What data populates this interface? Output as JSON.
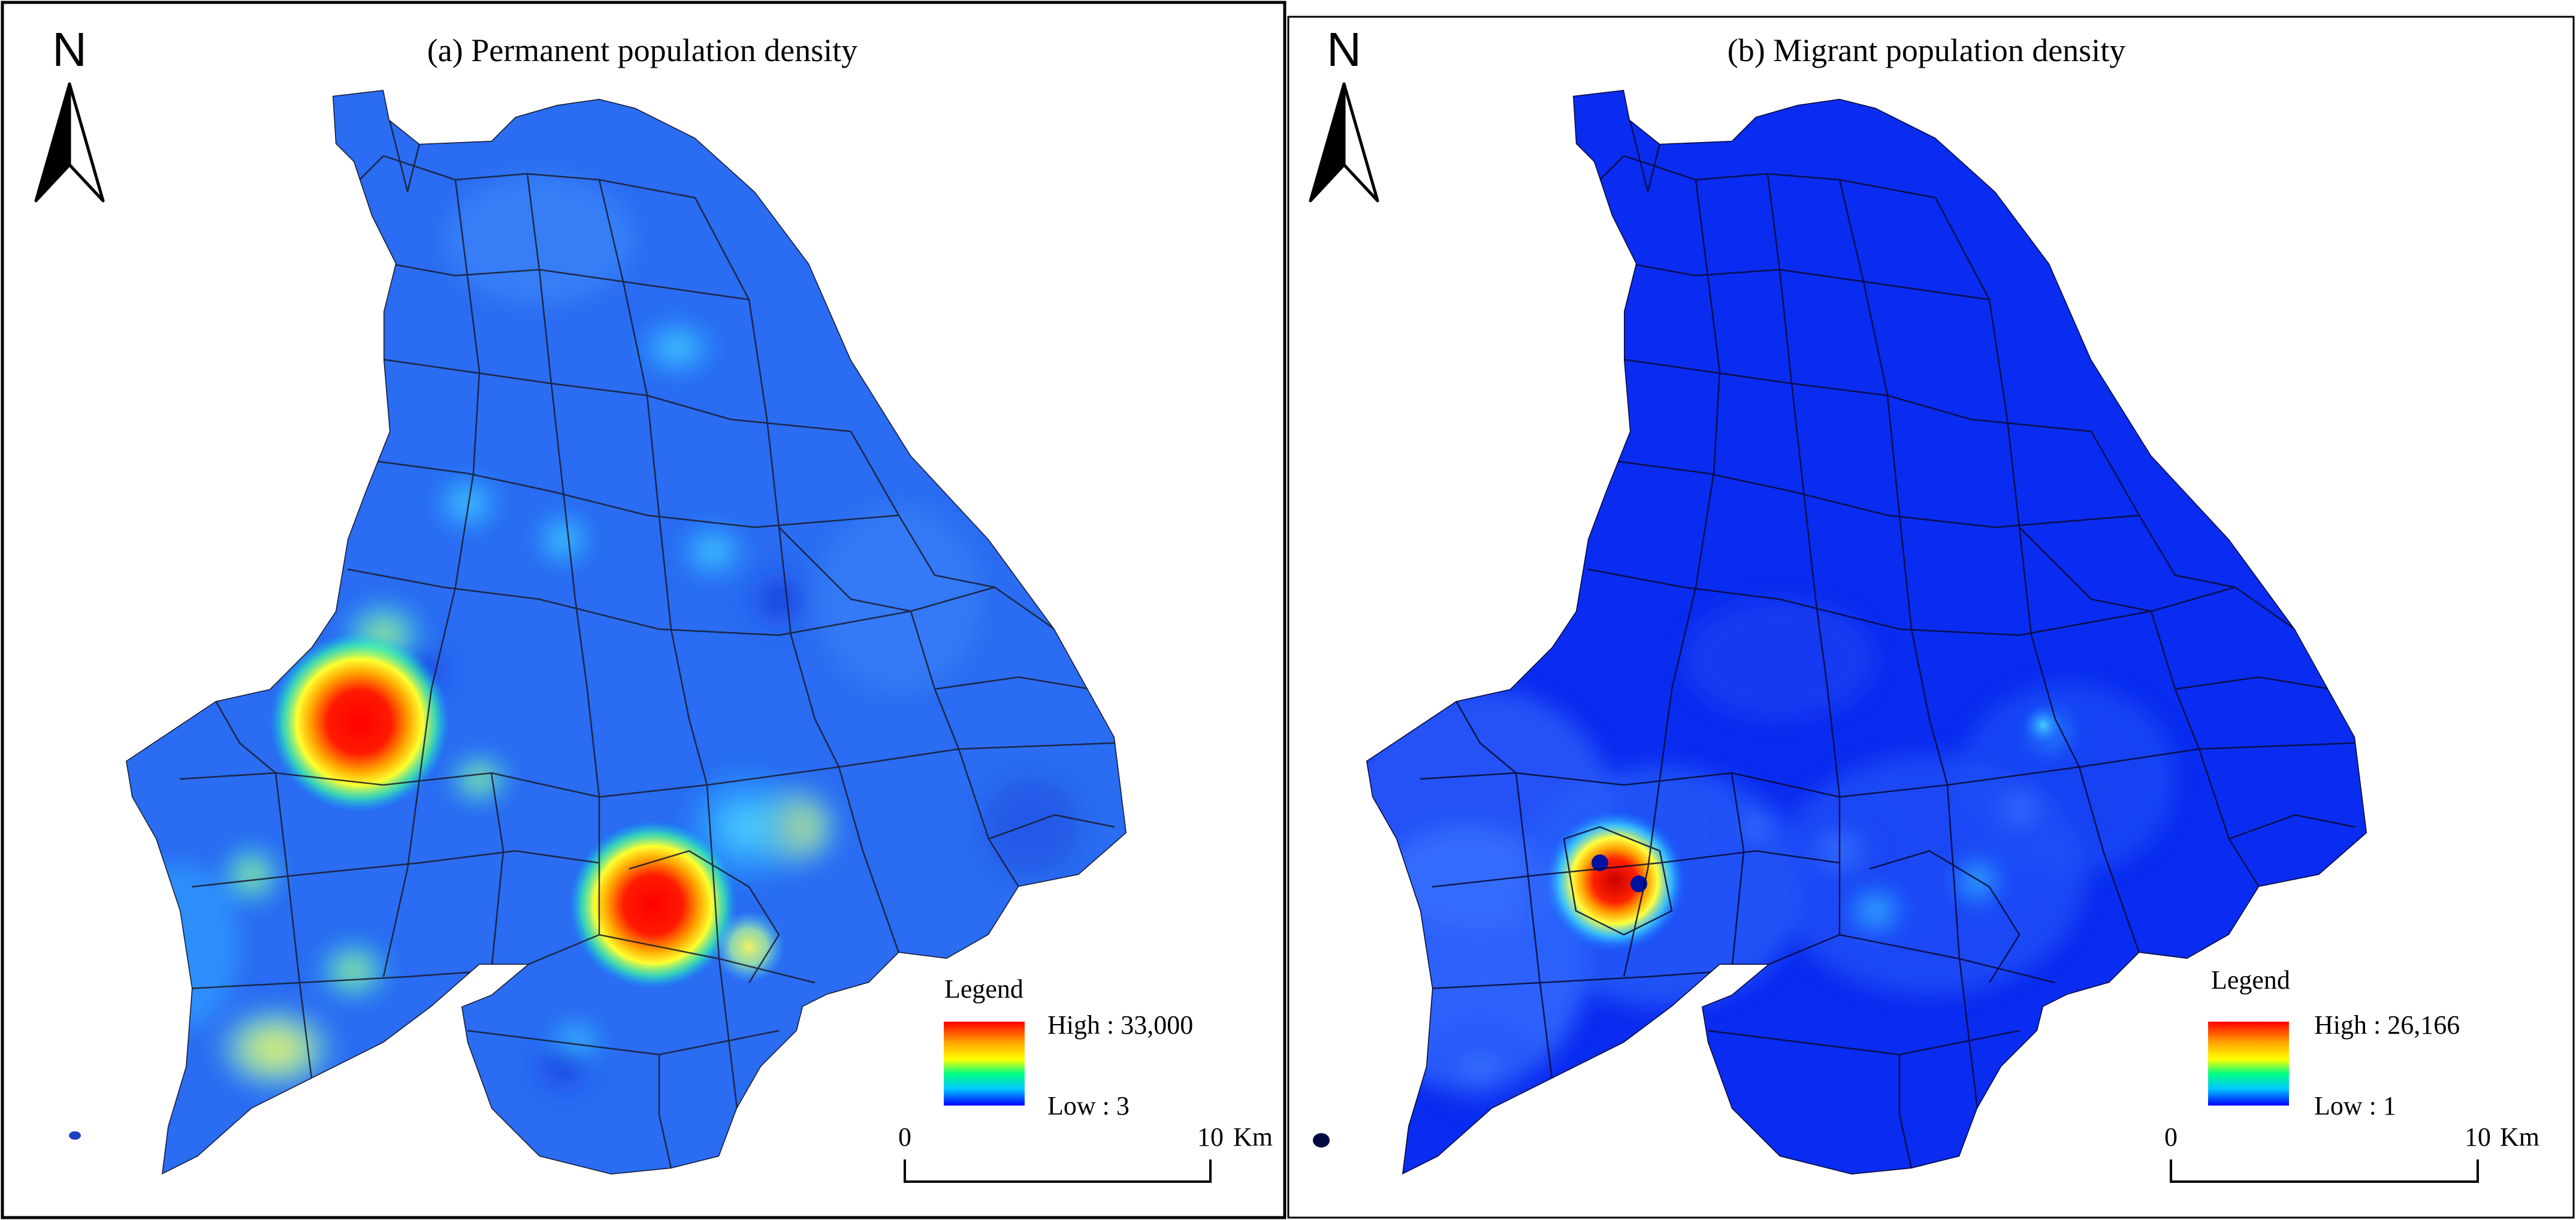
{
  "panel_a": {
    "title": "(a) Permanent population density",
    "north": "N",
    "legend": {
      "title": "Legend",
      "high": "High : 33,000",
      "low": "Low : 3"
    },
    "scale": {
      "start": "0",
      "end": "10",
      "unit": "Km"
    }
  },
  "panel_b": {
    "title": "(b) Migrant population density",
    "north": "N",
    "legend": {
      "title": "Legend",
      "high": "High : 26,166",
      "low": "Low : 1"
    },
    "scale": {
      "start": "0",
      "end": "10",
      "unit": "Km"
    }
  },
  "colors": {
    "ramp": [
      "#ff0000",
      "#ffa500",
      "#ffff00",
      "#00ff80",
      "#00c8ff",
      "#0000ff"
    ],
    "base_a": "#2a6cf2",
    "base_b": "#0a2cf0"
  }
}
